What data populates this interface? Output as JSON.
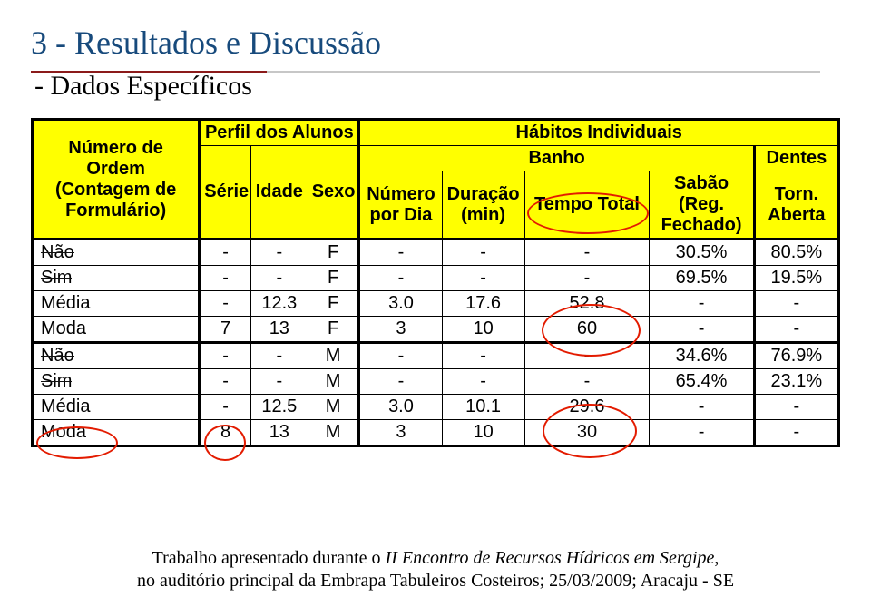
{
  "title": "3 - Resultados e Discussão",
  "subtitle": "- Dados Específicos",
  "table": {
    "header": {
      "ordem": "Número de Ordem (Contagem de Formulário)",
      "perfil": "Perfil dos Alunos",
      "habitos": "Hábitos Individuais",
      "serie": "Série",
      "idade": "Idade",
      "sexo": "Sexo",
      "banho": "Banho",
      "dentes": "Dentes",
      "numero_por_dia": "Número por Dia",
      "duracao": "Duração (min)",
      "tempo_total": "Tempo Total",
      "sabao": "Sabão (Reg. Fechado)",
      "torn": "Torn. Aberta"
    },
    "rows": [
      {
        "label": "Não",
        "strike": true,
        "serie": "-",
        "idade": "-",
        "sexo": "F",
        "npd": "-",
        "dur": "-",
        "tt": "-",
        "sab": "30.5%",
        "torn": "80.5%"
      },
      {
        "label": "Sim",
        "strike": true,
        "serie": "-",
        "idade": "-",
        "sexo": "F",
        "npd": "-",
        "dur": "-",
        "tt": "-",
        "sab": "69.5%",
        "torn": "19.5%"
      },
      {
        "label": "Média",
        "strike": false,
        "serie": "-",
        "idade": "12.3",
        "sexo": "F",
        "npd": "3.0",
        "dur": "17.6",
        "tt": "52.8",
        "sab": "-",
        "torn": "-"
      },
      {
        "label": "Moda",
        "strike": false,
        "serie": "7",
        "idade": "13",
        "sexo": "F",
        "npd": "3",
        "dur": "10",
        "tt": "60",
        "sab": "-",
        "torn": "-"
      },
      {
        "label": "Não",
        "strike": true,
        "serie": "-",
        "idade": "-",
        "sexo": "M",
        "npd": "-",
        "dur": "-",
        "tt": "-",
        "sab": "34.6%",
        "torn": "76.9%"
      },
      {
        "label": "Sim",
        "strike": true,
        "serie": "-",
        "idade": "-",
        "sexo": "M",
        "npd": "-",
        "dur": "-",
        "tt": "-",
        "sab": "65.4%",
        "torn": "23.1%"
      },
      {
        "label": "Média",
        "strike": false,
        "serie": "-",
        "idade": "12.5",
        "sexo": "M",
        "npd": "3.0",
        "dur": "10.1",
        "tt": "29.6",
        "sab": "-",
        "torn": "-"
      },
      {
        "label": "Moda",
        "strike": false,
        "serie": "8",
        "idade": "13",
        "sexo": "M",
        "npd": "3",
        "dur": "10",
        "tt": "30",
        "sab": "-",
        "torn": "-"
      }
    ]
  },
  "footer": {
    "line1_a": "Trabalho apresentado durante o ",
    "line1_b": "II Encontro de Recursos Hídricos em Sergipe",
    "line1_c": ",",
    "line2": "no auditório principal da Embrapa Tabuleiros Costeiros; 25/03/2009; Aracaju - SE"
  },
  "style": {
    "title_color": "#174a7c",
    "header_bg": "#ffff00",
    "ellipse_color": "#e31b00",
    "rule_accent": "#8b1a1a",
    "rule_gray": "#c7c7c7"
  }
}
